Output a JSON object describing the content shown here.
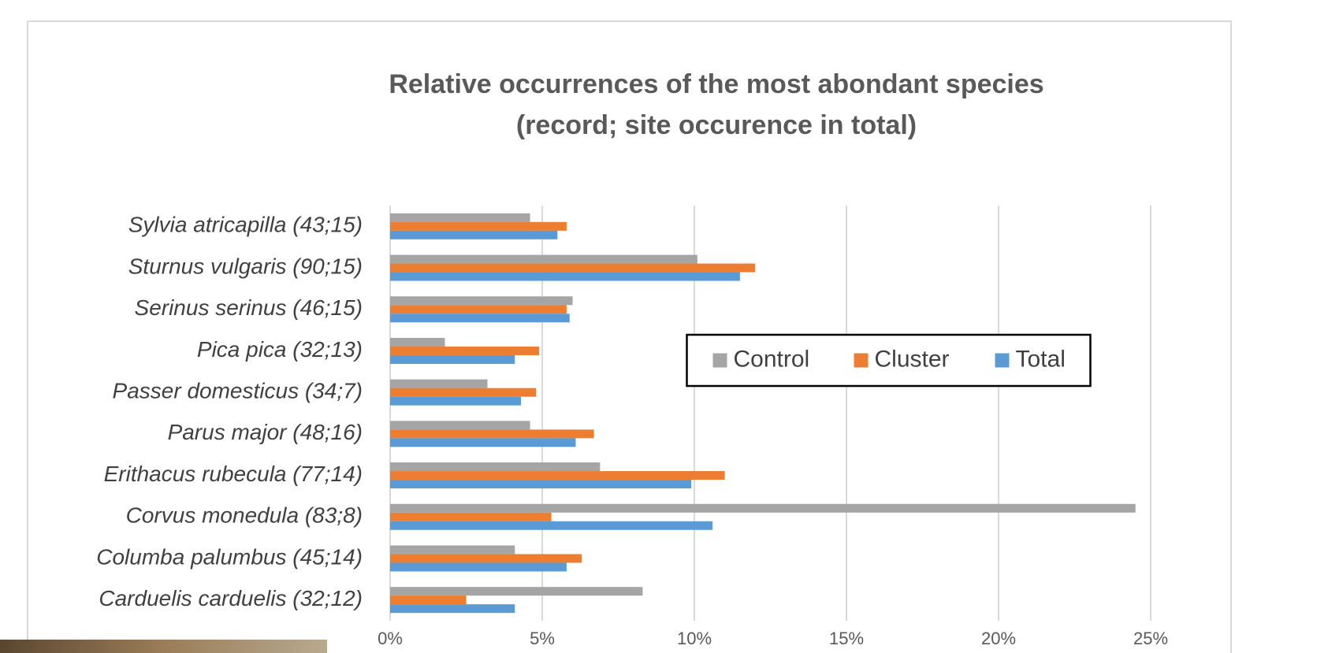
{
  "chart_data": {
    "type": "hbar",
    "title": "Relative occurrences of the most abondant species",
    "subtitle": "(record; site occurence in total)",
    "categories": [
      "Sylvia atricapilla (43;15)",
      "Sturnus vulgaris (90;15)",
      "Serinus serinus (46;15)",
      "Pica pica (32;13)",
      "Passer domesticus (34;7)",
      "Parus major (48;16)",
      "Erithacus rubecula (77;14)",
      "Corvus monedula (83;8)",
      "Columba palumbus (45;14)",
      "Carduelis carduelis (32;12)"
    ],
    "series": [
      {
        "name": "Control",
        "color": "#a5a5a5",
        "values": [
          4.6,
          10.1,
          6.0,
          1.8,
          3.2,
          4.6,
          6.9,
          24.5,
          4.1,
          8.3
        ]
      },
      {
        "name": "Cluster",
        "color": "#ed7d31",
        "values": [
          5.8,
          12.0,
          5.8,
          4.9,
          4.8,
          6.7,
          11.0,
          5.3,
          6.3,
          2.5
        ]
      },
      {
        "name": "Total",
        "color": "#5b9bd5",
        "values": [
          5.5,
          11.5,
          5.9,
          4.1,
          4.3,
          6.1,
          9.9,
          10.6,
          5.8,
          4.1
        ]
      }
    ],
    "xlim": [
      0,
      25
    ],
    "xticks": [
      {
        "value": 0,
        "label": "0%"
      },
      {
        "value": 5,
        "label": "5%"
      },
      {
        "value": 10,
        "label": "10%"
      },
      {
        "value": 15,
        "label": "15%"
      },
      {
        "value": 20,
        "label": "20%"
      },
      {
        "value": 25,
        "label": "25%"
      }
    ],
    "grid": true,
    "legend": "center"
  }
}
